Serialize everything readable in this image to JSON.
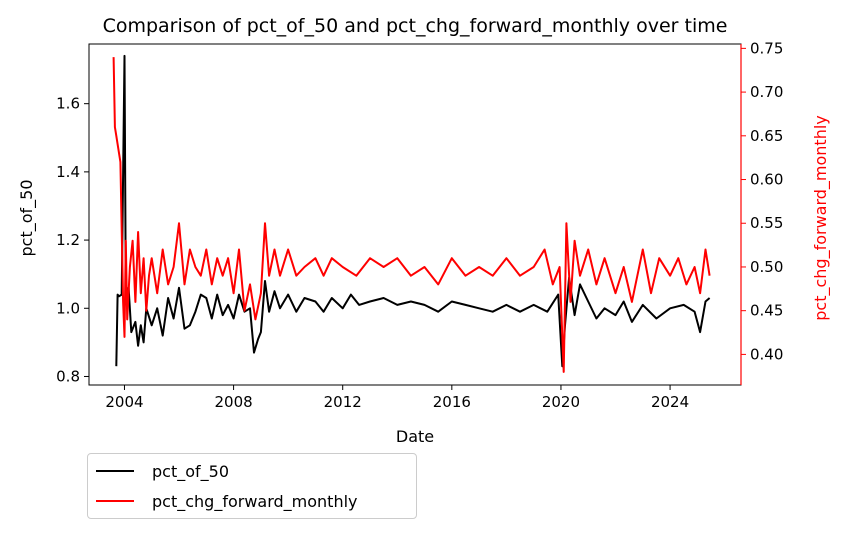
{
  "chart_data": {
    "type": "line",
    "title": "Comparison of pct_of_50 and pct_chg_forward_monthly over time",
    "xlabel": "Date",
    "xlim": [
      2002.7,
      2026.6
    ],
    "x_ticks": [
      2004,
      2008,
      2012,
      2016,
      2020,
      2024
    ],
    "x_tick_labels": [
      "2004",
      "2008",
      "2012",
      "2016",
      "2020",
      "2024"
    ],
    "left_axis": {
      "ylabel": "pct_of_50",
      "ylim": [
        0.775,
        1.775
      ],
      "ticks": [
        0.8,
        1.0,
        1.2,
        1.4,
        1.6
      ],
      "tick_labels": [
        "0.8",
        "1.0",
        "1.2",
        "1.4",
        "1.6"
      ],
      "color": "#000000"
    },
    "right_axis": {
      "ylabel": "pct_chg_forward_monthly",
      "ylim": [
        0.365,
        0.755
      ],
      "ticks": [
        0.4,
        0.45,
        0.5,
        0.55,
        0.6,
        0.65,
        0.7,
        0.75
      ],
      "tick_labels": [
        "0.40",
        "0.45",
        "0.50",
        "0.55",
        "0.60",
        "0.65",
        "0.70",
        "0.75"
      ],
      "color": "#ff0000"
    },
    "legend_position": "below-left",
    "series": [
      {
        "name": "pct_of_50",
        "axis": "left",
        "color": "#000000",
        "x": [
          2003.7,
          2003.75,
          2003.8,
          2003.9,
          2004.0,
          2004.05,
          2004.1,
          2004.15,
          2004.25,
          2004.4,
          2004.5,
          2004.6,
          2004.7,
          2004.8,
          2005.0,
          2005.2,
          2005.4,
          2005.6,
          2005.8,
          2006.0,
          2006.2,
          2006.4,
          2006.6,
          2006.8,
          2007.0,
          2007.2,
          2007.4,
          2007.6,
          2007.8,
          2008.0,
          2008.2,
          2008.4,
          2008.6,
          2008.75,
          2008.9,
          2009.0,
          2009.15,
          2009.3,
          2009.5,
          2009.7,
          2010.0,
          2010.3,
          2010.6,
          2011.0,
          2011.3,
          2011.6,
          2012.0,
          2012.3,
          2012.6,
          2013.0,
          2013.5,
          2014.0,
          2014.5,
          2015.0,
          2015.5,
          2016.0,
          2016.5,
          2017.0,
          2017.5,
          2018.0,
          2018.5,
          2019.0,
          2019.5,
          2019.9,
          2020.05,
          2020.15,
          2020.3,
          2020.5,
          2020.7,
          2021.0,
          2021.3,
          2021.6,
          2022.0,
          2022.3,
          2022.6,
          2023.0,
          2023.5,
          2024.0,
          2024.5,
          2024.9,
          2025.1,
          2025.3,
          2025.45
        ],
        "y": [
          0.83,
          1.04,
          1.035,
          1.04,
          1.74,
          1.05,
          1.0,
          1.06,
          0.93,
          0.96,
          0.89,
          0.95,
          0.9,
          1.0,
          0.95,
          1.0,
          0.92,
          1.03,
          0.97,
          1.06,
          0.94,
          0.95,
          0.99,
          1.04,
          1.03,
          0.97,
          1.04,
          0.98,
          1.01,
          0.97,
          1.04,
          0.99,
          1.0,
          0.87,
          0.91,
          0.93,
          1.08,
          0.99,
          1.05,
          1.0,
          1.04,
          0.99,
          1.03,
          1.02,
          0.99,
          1.03,
          1.0,
          1.04,
          1.01,
          1.02,
          1.03,
          1.01,
          1.02,
          1.01,
          0.99,
          1.02,
          1.01,
          1.0,
          0.99,
          1.01,
          0.99,
          1.01,
          0.99,
          1.04,
          0.83,
          0.95,
          1.09,
          0.98,
          1.07,
          1.02,
          0.97,
          1.0,
          0.98,
          1.02,
          0.96,
          1.01,
          0.97,
          1.0,
          1.01,
          0.99,
          0.93,
          1.02,
          1.03
        ]
      },
      {
        "name": "pct_chg_forward_monthly",
        "axis": "right",
        "color": "#ff0000",
        "x": [
          2003.6,
          2003.65,
          2003.7,
          2003.85,
          2003.95,
          2004.0,
          2004.05,
          2004.1,
          2004.2,
          2004.3,
          2004.4,
          2004.5,
          2004.6,
          2004.7,
          2004.8,
          2004.9,
          2005.0,
          2005.2,
          2005.4,
          2005.6,
          2005.8,
          2006.0,
          2006.2,
          2006.4,
          2006.6,
          2006.8,
          2007.0,
          2007.2,
          2007.4,
          2007.6,
          2007.8,
          2008.0,
          2008.2,
          2008.4,
          2008.6,
          2008.8,
          2009.0,
          2009.15,
          2009.3,
          2009.5,
          2009.7,
          2010.0,
          2010.3,
          2010.6,
          2011.0,
          2011.3,
          2011.6,
          2012.0,
          2012.5,
          2013.0,
          2013.5,
          2014.0,
          2014.5,
          2015.0,
          2015.5,
          2016.0,
          2016.5,
          2017.0,
          2017.5,
          2018.0,
          2018.5,
          2019.0,
          2019.4,
          2019.7,
          2019.95,
          2020.1,
          2020.2,
          2020.35,
          2020.5,
          2020.7,
          2021.0,
          2021.3,
          2021.6,
          2022.0,
          2022.3,
          2022.6,
          2023.0,
          2023.3,
          2023.6,
          2024.0,
          2024.3,
          2024.6,
          2024.9,
          2025.1,
          2025.3,
          2025.45
        ],
        "y": [
          0.74,
          0.66,
          0.65,
          0.62,
          0.46,
          0.42,
          0.53,
          0.44,
          0.5,
          0.53,
          0.46,
          0.54,
          0.47,
          0.51,
          0.45,
          0.49,
          0.51,
          0.47,
          0.52,
          0.48,
          0.5,
          0.55,
          0.48,
          0.52,
          0.5,
          0.49,
          0.52,
          0.48,
          0.51,
          0.49,
          0.51,
          0.47,
          0.52,
          0.45,
          0.48,
          0.44,
          0.47,
          0.55,
          0.49,
          0.52,
          0.49,
          0.52,
          0.49,
          0.5,
          0.51,
          0.49,
          0.51,
          0.5,
          0.49,
          0.51,
          0.5,
          0.51,
          0.49,
          0.5,
          0.48,
          0.51,
          0.49,
          0.5,
          0.49,
          0.51,
          0.49,
          0.5,
          0.52,
          0.48,
          0.5,
          0.38,
          0.55,
          0.46,
          0.53,
          0.49,
          0.52,
          0.48,
          0.51,
          0.47,
          0.5,
          0.46,
          0.52,
          0.47,
          0.51,
          0.49,
          0.51,
          0.48,
          0.5,
          0.47,
          0.52,
          0.49
        ]
      }
    ]
  }
}
